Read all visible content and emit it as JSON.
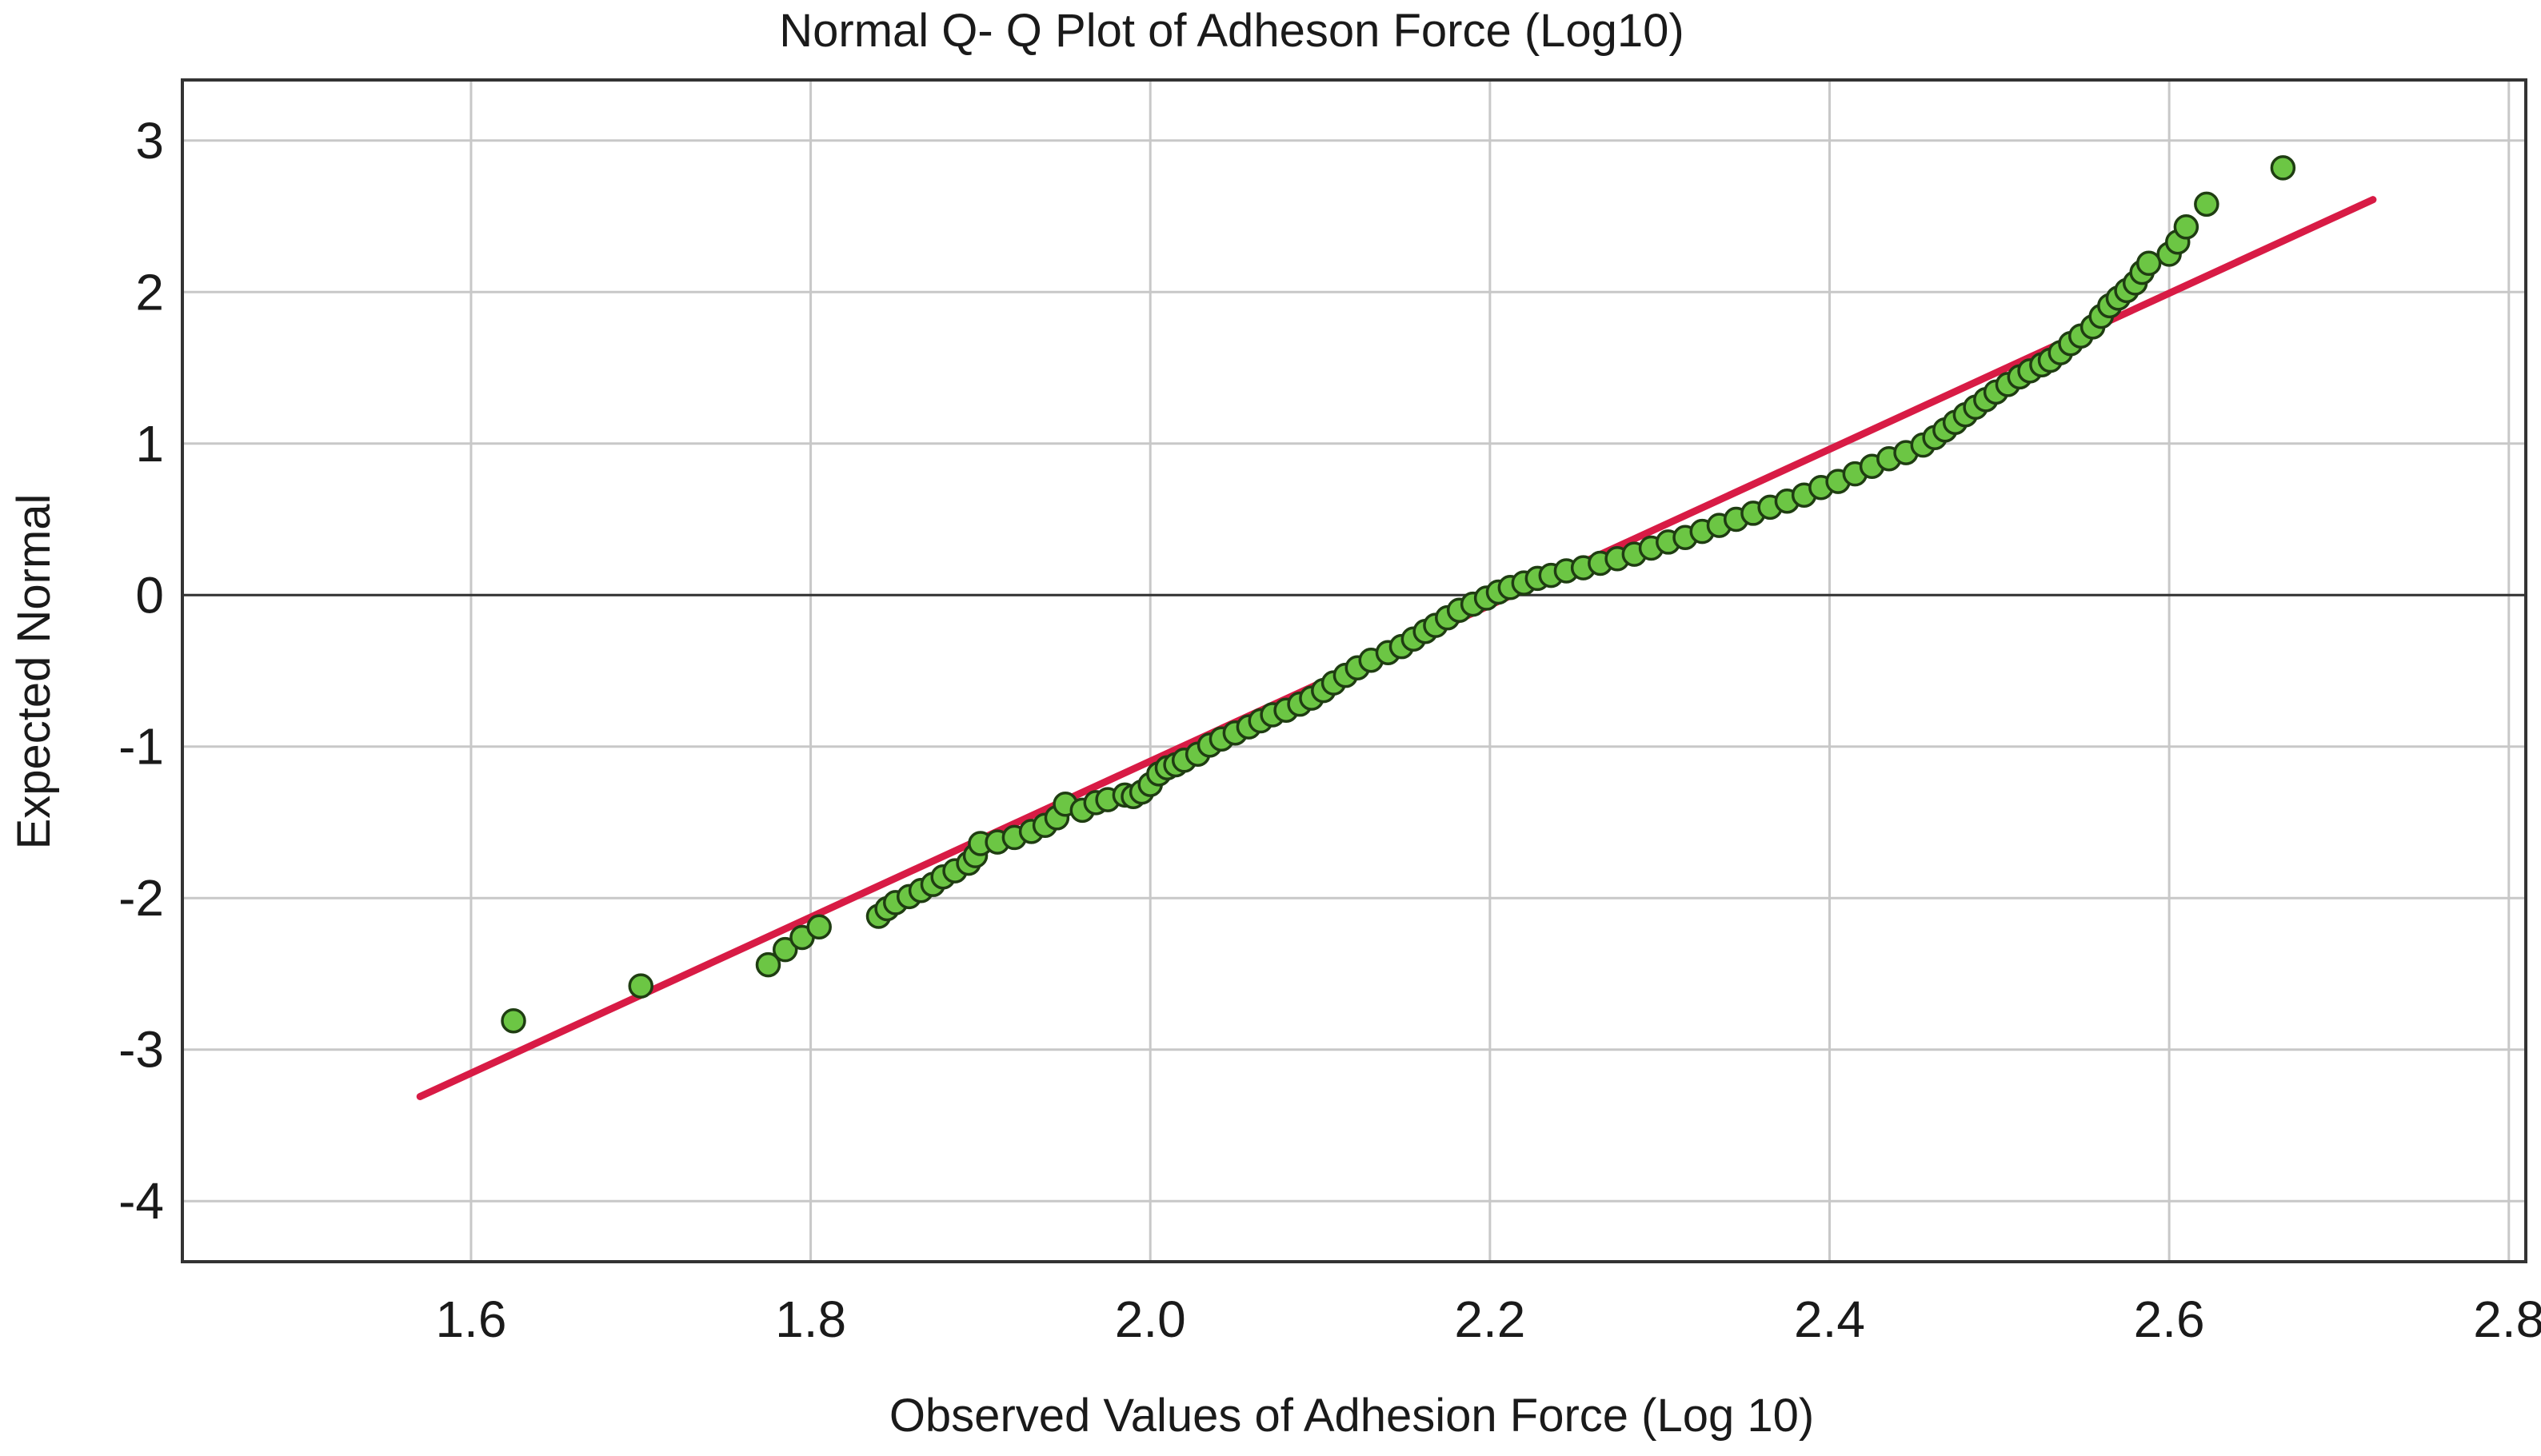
{
  "chart_data": {
    "type": "scatter",
    "title": "Normal Q- Q Plot of Adheson Force (Log10)",
    "xlabel": "Observed Values of Adhesion Force (Log 10)",
    "ylabel": "Expected Normal",
    "xlim": [
      1.43,
      2.81
    ],
    "ylim": [
      -4.4,
      3.4
    ],
    "x_ticks": [
      1.6,
      1.8,
      2.0,
      2.2,
      2.4,
      2.6,
      2.8
    ],
    "x_tick_labels": [
      "1.6",
      "1.8",
      "2.0",
      "2.2",
      "2.4",
      "2.6",
      "2.8"
    ],
    "y_ticks": [
      3,
      2,
      1,
      0,
      -1,
      -2,
      -3,
      -4
    ],
    "y_tick_labels": [
      "3",
      "2",
      "1",
      "0",
      "-1",
      "-2",
      "-3",
      "-4"
    ],
    "grid": true,
    "zero_line": 0,
    "reference_line": {
      "x": [
        1.57,
        2.72
      ],
      "y": [
        -3.31,
        2.61
      ]
    },
    "colors": {
      "point_fill": "#6cc644",
      "point_stroke": "#1f3d12",
      "reference_line": "#d81b45",
      "grid": "#c8c8c8",
      "zero_line": "#333333",
      "frame": "#333333"
    },
    "points": [
      [
        1.625,
        -2.81
      ],
      [
        1.7,
        -2.58
      ],
      [
        1.775,
        -2.44
      ],
      [
        1.785,
        -2.34
      ],
      [
        1.795,
        -2.26
      ],
      [
        1.805,
        -2.19
      ],
      [
        1.84,
        -2.12
      ],
      [
        1.845,
        -2.07
      ],
      [
        1.85,
        -2.03
      ],
      [
        1.858,
        -1.99
      ],
      [
        1.865,
        -1.95
      ],
      [
        1.872,
        -1.91
      ],
      [
        1.878,
        -1.86
      ],
      [
        1.885,
        -1.82
      ],
      [
        1.893,
        -1.77
      ],
      [
        1.897,
        -1.72
      ],
      [
        1.9,
        -1.64
      ],
      [
        1.91,
        -1.63
      ],
      [
        1.92,
        -1.6
      ],
      [
        1.93,
        -1.56
      ],
      [
        1.938,
        -1.52
      ],
      [
        1.945,
        -1.47
      ],
      [
        1.95,
        -1.38
      ],
      [
        1.96,
        -1.42
      ],
      [
        1.968,
        -1.37
      ],
      [
        1.975,
        -1.35
      ],
      [
        1.985,
        -1.32
      ],
      [
        1.99,
        -1.33
      ],
      [
        1.995,
        -1.3
      ],
      [
        2.0,
        -1.25
      ],
      [
        2.005,
        -1.18
      ],
      [
        2.01,
        -1.14
      ],
      [
        2.015,
        -1.12
      ],
      [
        2.02,
        -1.09
      ],
      [
        2.028,
        -1.05
      ],
      [
        2.035,
        -0.99
      ],
      [
        2.042,
        -0.95
      ],
      [
        2.05,
        -0.91
      ],
      [
        2.058,
        -0.87
      ],
      [
        2.065,
        -0.83
      ],
      [
        2.072,
        -0.79
      ],
      [
        2.08,
        -0.76
      ],
      [
        2.088,
        -0.72
      ],
      [
        2.095,
        -0.68
      ],
      [
        2.102,
        -0.63
      ],
      [
        2.108,
        -0.58
      ],
      [
        2.115,
        -0.53
      ],
      [
        2.122,
        -0.48
      ],
      [
        2.13,
        -0.43
      ],
      [
        2.14,
        -0.38
      ],
      [
        2.148,
        -0.34
      ],
      [
        2.155,
        -0.29
      ],
      [
        2.162,
        -0.24
      ],
      [
        2.168,
        -0.2
      ],
      [
        2.175,
        -0.15
      ],
      [
        2.182,
        -0.1
      ],
      [
        2.19,
        -0.06
      ],
      [
        2.198,
        -0.02
      ],
      [
        2.205,
        0.02
      ],
      [
        2.212,
        0.05
      ],
      [
        2.22,
        0.08
      ],
      [
        2.228,
        0.11
      ],
      [
        2.236,
        0.13
      ],
      [
        2.245,
        0.16
      ],
      [
        2.255,
        0.18
      ],
      [
        2.265,
        0.21
      ],
      [
        2.275,
        0.24
      ],
      [
        2.285,
        0.27
      ],
      [
        2.295,
        0.31
      ],
      [
        2.305,
        0.35
      ],
      [
        2.315,
        0.38
      ],
      [
        2.325,
        0.42
      ],
      [
        2.335,
        0.46
      ],
      [
        2.345,
        0.5
      ],
      [
        2.355,
        0.54
      ],
      [
        2.365,
        0.58
      ],
      [
        2.375,
        0.62
      ],
      [
        2.385,
        0.66
      ],
      [
        2.395,
        0.71
      ],
      [
        2.405,
        0.75
      ],
      [
        2.415,
        0.8
      ],
      [
        2.425,
        0.85
      ],
      [
        2.435,
        0.9
      ],
      [
        2.445,
        0.94
      ],
      [
        2.455,
        0.99
      ],
      [
        2.462,
        1.04
      ],
      [
        2.468,
        1.09
      ],
      [
        2.474,
        1.14
      ],
      [
        2.48,
        1.19
      ],
      [
        2.486,
        1.24
      ],
      [
        2.492,
        1.29
      ],
      [
        2.498,
        1.34
      ],
      [
        2.505,
        1.39
      ],
      [
        2.512,
        1.44
      ],
      [
        2.518,
        1.48
      ],
      [
        2.525,
        1.52
      ],
      [
        2.53,
        1.55
      ],
      [
        2.536,
        1.6
      ],
      [
        2.542,
        1.66
      ],
      [
        2.548,
        1.71
      ],
      [
        2.555,
        1.77
      ],
      [
        2.56,
        1.84
      ],
      [
        2.565,
        1.91
      ],
      [
        2.57,
        1.96
      ],
      [
        2.575,
        2.01
      ],
      [
        2.58,
        2.06
      ],
      [
        2.584,
        2.13
      ],
      [
        2.588,
        2.19
      ],
      [
        2.6,
        2.25
      ],
      [
        2.605,
        2.33
      ],
      [
        2.61,
        2.43
      ],
      [
        2.622,
        2.58
      ],
      [
        2.667,
        2.82
      ]
    ]
  }
}
